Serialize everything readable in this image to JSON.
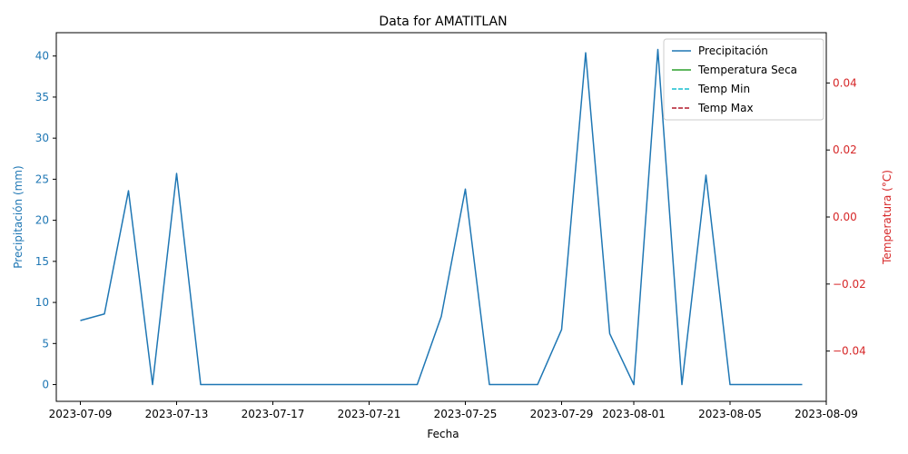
{
  "chart_data": {
    "type": "line",
    "title": "Data for AMATITLAN",
    "xlabel": "Fecha",
    "ylabel_left": "Precipitación (mm)",
    "ylabel_right": "Temperatura (°C)",
    "xlim": [
      "2023-07-08",
      "2023-08-09"
    ],
    "ylim_left": [
      -2.04,
      42.84
    ],
    "ylim_right": [
      -0.055,
      0.055
    ],
    "x_ticks": [
      "2023-07-09",
      "2023-07-13",
      "2023-07-17",
      "2023-07-21",
      "2023-07-25",
      "2023-07-29",
      "2023-08-01",
      "2023-08-05",
      "2023-08-09"
    ],
    "y_ticks_left": [
      "0",
      "5",
      "10",
      "15",
      "20",
      "25",
      "30",
      "35",
      "40"
    ],
    "y_ticks_right": [
      "−0.04",
      "−0.02",
      "0.00",
      "0.02",
      "0.04"
    ],
    "y_ticks_right_values": [
      -0.04,
      -0.02,
      0.0,
      0.02,
      0.04
    ],
    "grid": false,
    "legend_position": "top-right",
    "series": [
      {
        "name": "Precipitación",
        "axis": "left",
        "color": "#1f77b4",
        "style": "solid",
        "dates": [
          "2023-07-09",
          "2023-07-10",
          "2023-07-11",
          "2023-07-12",
          "2023-07-13",
          "2023-07-14",
          "2023-07-15",
          "2023-07-16",
          "2023-07-17",
          "2023-07-18",
          "2023-07-19",
          "2023-07-20",
          "2023-07-21",
          "2023-07-22",
          "2023-07-23",
          "2023-07-24",
          "2023-07-25",
          "2023-07-26",
          "2023-07-27",
          "2023-07-28",
          "2023-07-29",
          "2023-07-30",
          "2023-07-31",
          "2023-08-01",
          "2023-08-02",
          "2023-08-03",
          "2023-08-04",
          "2023-08-05",
          "2023-08-06",
          "2023-08-07",
          "2023-08-08"
        ],
        "values": [
          7.8,
          8.6,
          23.6,
          0.0,
          25.7,
          0.0,
          0.0,
          0.0,
          0.0,
          0.0,
          0.0,
          0.0,
          0.0,
          0.0,
          0.0,
          8.3,
          23.8,
          0.0,
          0.0,
          0.0,
          6.7,
          40.4,
          6.2,
          0.0,
          40.8,
          0.0,
          25.5,
          0.0,
          0.0,
          0.0,
          0.0
        ]
      },
      {
        "name": "Temperatura Seca",
        "axis": "right",
        "color": "#2ca02c",
        "style": "solid",
        "dates": [],
        "values": []
      },
      {
        "name": "Temp Min",
        "axis": "right",
        "color": "#17becf",
        "style": "dashed",
        "dates": [],
        "values": []
      },
      {
        "name": "Temp Max",
        "axis": "right",
        "color": "#b2182b",
        "style": "dashed",
        "dates": [],
        "values": []
      }
    ],
    "colors": {
      "left_axis": "#1f77b4",
      "right_axis": "#d62728",
      "frame": "#000000"
    }
  }
}
